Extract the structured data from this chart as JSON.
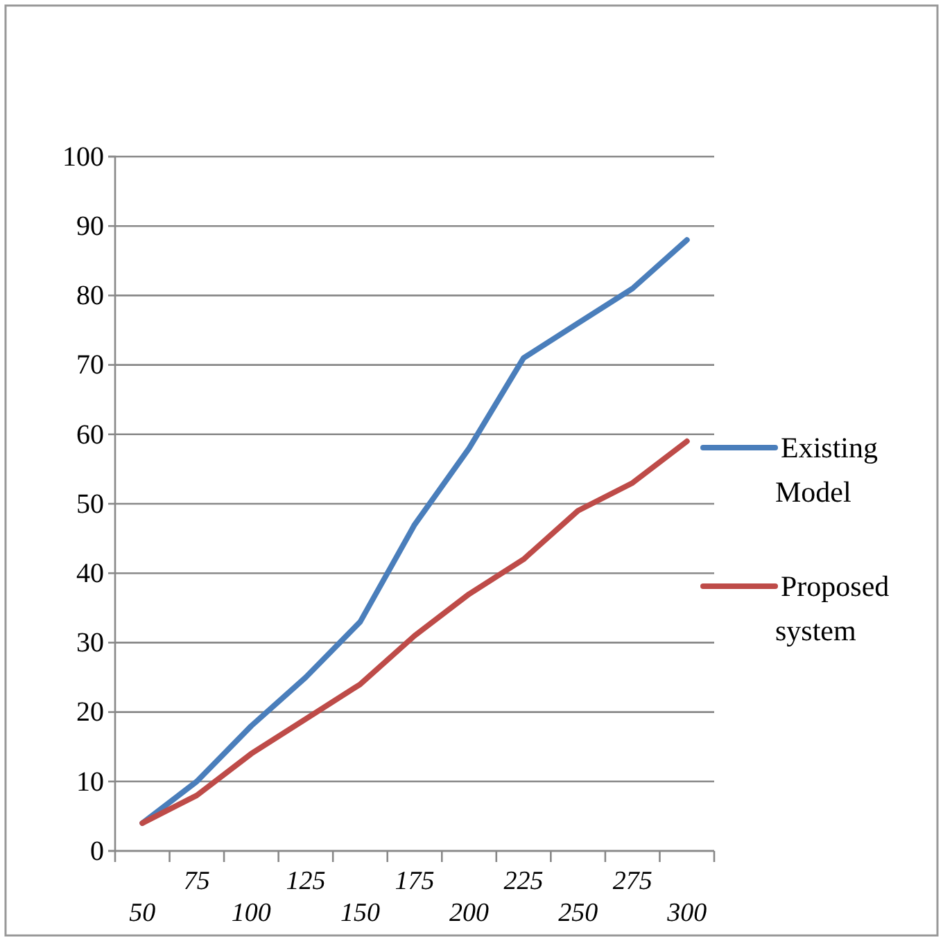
{
  "chart_data": {
    "type": "line",
    "categories": [
      "50",
      "75",
      "100",
      "125",
      "150",
      "175",
      "200",
      "225",
      "250",
      "275",
      "300"
    ],
    "series": [
      {
        "name": "Existing Model",
        "color": "#4a7ebb",
        "values": [
          4,
          10,
          18,
          25,
          33,
          47,
          58,
          71,
          76,
          81,
          88
        ]
      },
      {
        "name": "Proposed system",
        "color": "#be4b48",
        "values": [
          4,
          8,
          14,
          19,
          24,
          31,
          37,
          42,
          49,
          53,
          59
        ]
      }
    ],
    "ylim": [
      0,
      100
    ],
    "yticks": [
      0,
      10,
      20,
      30,
      40,
      50,
      60,
      70,
      80,
      90,
      100
    ],
    "grid": "y",
    "legend": "right",
    "marker": "none",
    "line_style": "solid"
  }
}
